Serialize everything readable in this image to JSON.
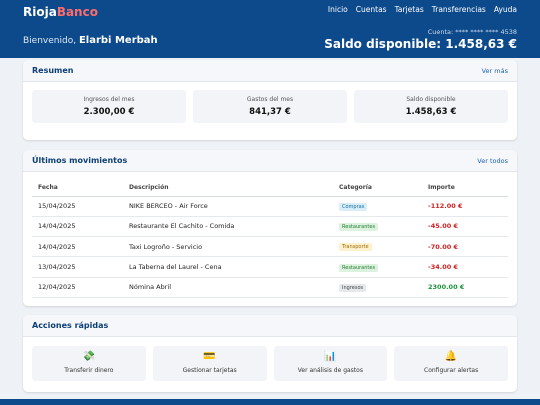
{
  "brand": {
    "part1": "Rioja",
    "part2": "Banco"
  },
  "nav": [
    "Inicio",
    "Cuentas",
    "Tarjetas",
    "Transferencias",
    "Ayuda"
  ],
  "header": {
    "greeting": "Bienvenido,",
    "user": "Elarbi Merbah",
    "account": "Cuenta: **** **** **** 4538",
    "balance": "Saldo disponible: 1.458,63 €"
  },
  "summary": {
    "title": "Resumen",
    "link": "Ver más",
    "boxes": [
      {
        "label": "Ingresos del mes",
        "value": "2.300,00 €"
      },
      {
        "label": "Gastos del mes",
        "value": "841,37 €"
      },
      {
        "label": "Saldo disponible",
        "value": "1.458,63 €"
      }
    ]
  },
  "movements": {
    "title": "Últimos movimientos",
    "link": "Ver todos",
    "columns": [
      "Fecha",
      "Descripción",
      "Categoría",
      "Importe"
    ],
    "rows": [
      {
        "date": "15/04/2025",
        "desc": "NIKE BERCEO - Air Force",
        "cat": "Compras",
        "amount": "-112.00 €"
      },
      {
        "date": "14/04/2025",
        "desc": "Restaurante El Cachito - Comida",
        "cat": "Restaurantes",
        "amount": "-45.00 €"
      },
      {
        "date": "14/04/2025",
        "desc": "Taxi Logroño - Servicio",
        "cat": "Transporte",
        "amount": "-70.00 €"
      },
      {
        "date": "13/04/2025",
        "desc": "La Taberna del Laurel - Cena",
        "cat": "Restaurantes",
        "amount": "-34.00 €"
      },
      {
        "date": "12/04/2025",
        "desc": "Nómina Abril",
        "cat": "Ingresos",
        "amount": "2300.00 €"
      }
    ],
    "badge_colors": {
      "Compras": {
        "bg": "#d7eefa",
        "fg": "#1a6e9c"
      },
      "Restaurantes": {
        "bg": "#dcf2de",
        "fg": "#257a33"
      },
      "Transporte": {
        "bg": "#fdf0cc",
        "fg": "#9a6d0a"
      },
      "Ingresos": {
        "bg": "#e6e8ec",
        "fg": "#444444"
      }
    }
  },
  "actions": {
    "title": "Acciones rápidas",
    "items": [
      {
        "icon": "money-icon",
        "glyph": "💸",
        "label": "Transferir dinero"
      },
      {
        "icon": "card-icon",
        "glyph": "💳",
        "label": "Gestionar tarjetas"
      },
      {
        "icon": "chart-icon",
        "glyph": "📊",
        "label": "Ver análisis de gastos"
      },
      {
        "icon": "bell-icon",
        "glyph": "🔔",
        "label": "Configurar alertas"
      }
    ]
  },
  "colors": {
    "primary": "#0d4a8c",
    "accent": "#ff6b6b",
    "negative": "#cc2222",
    "positive": "#1e9438"
  }
}
